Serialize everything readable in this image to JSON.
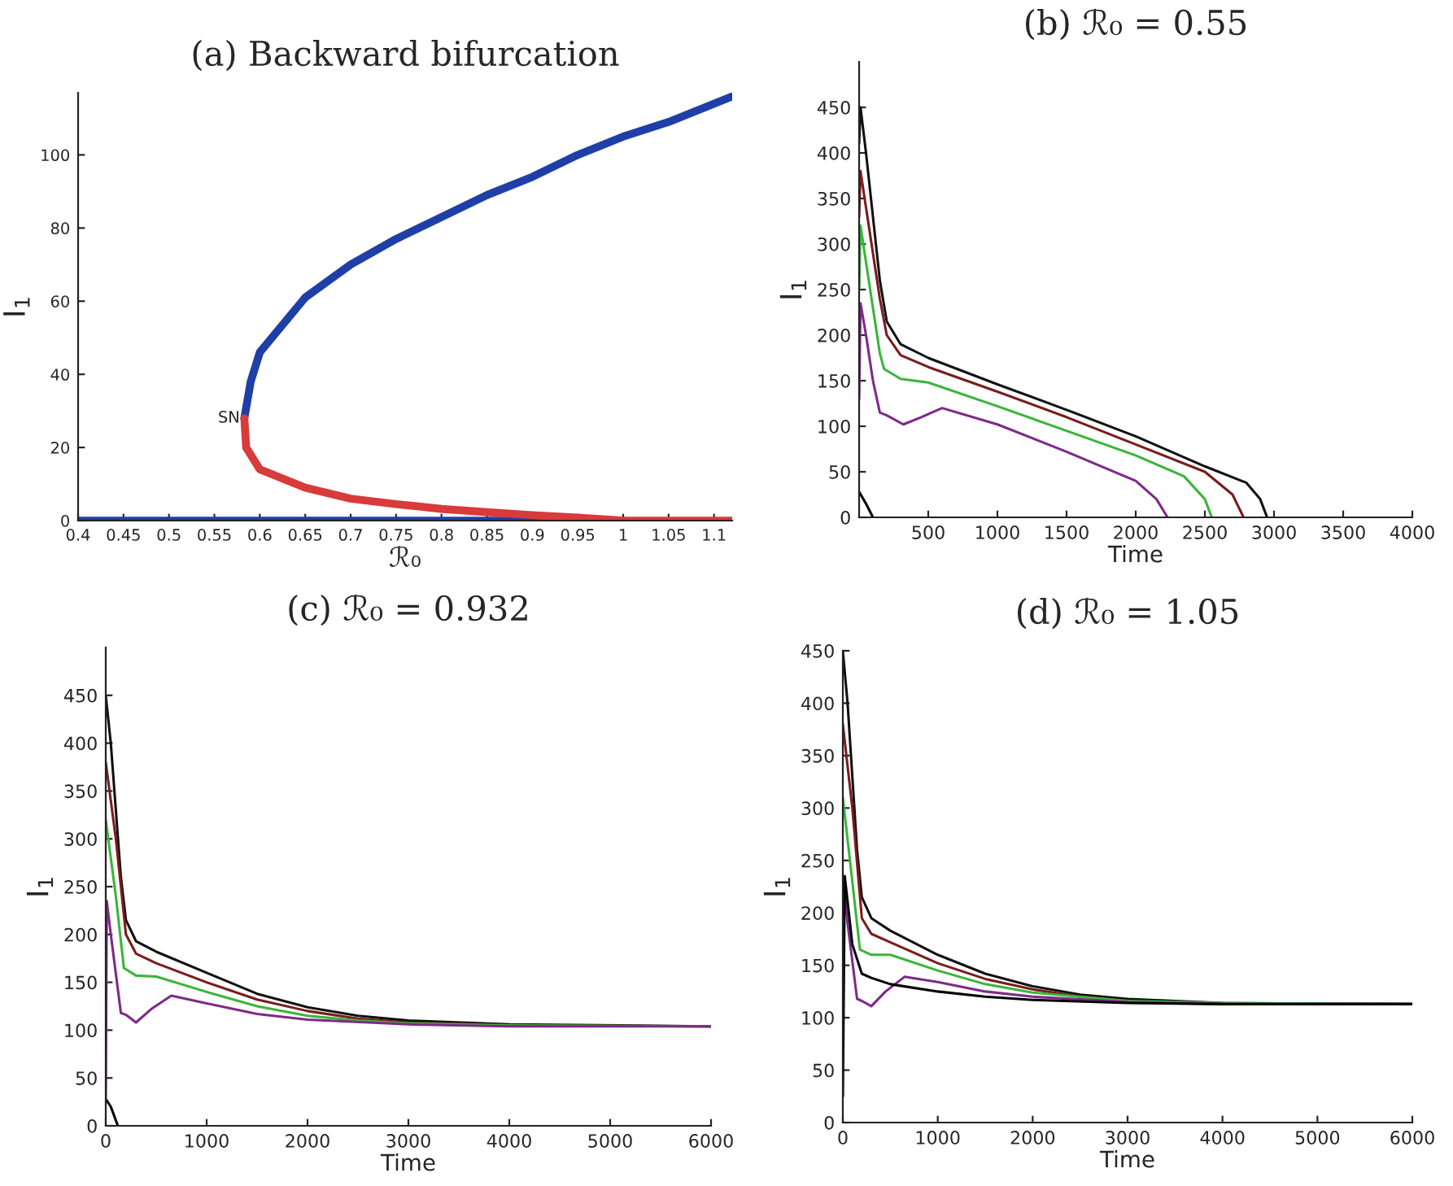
{
  "chart_data": [
    {
      "type": "line",
      "title": "(a) Backward bifurcation",
      "xlabel": "ℛ₀",
      "ylabel": "I$_{1}$",
      "xlim": [
        0.4,
        1.12
      ],
      "ylim": [
        0,
        117
      ],
      "xticks": [
        0.4,
        0.45,
        0.5,
        0.55,
        0.6,
        0.65,
        0.7,
        0.75,
        0.8,
        0.85,
        0.9,
        0.95,
        1,
        1.05,
        1.1
      ],
      "yticks": [
        0,
        20,
        40,
        60,
        80,
        100
      ],
      "annotations": [
        {
          "text": "SN",
          "x": 0.583,
          "y": 28
        }
      ],
      "series": [
        {
          "color": "#1f3fa8",
          "x": [
            0.4,
            1.0
          ],
          "values": [
            0,
            0
          ]
        },
        {
          "color": "#1f3fa8",
          "x": [
            0.583,
            0.59,
            0.6,
            0.65,
            0.7,
            0.75,
            0.8,
            0.85,
            0.9,
            0.95,
            1.0,
            1.05,
            1.1,
            1.12
          ],
          "values": [
            28,
            38,
            46,
            61,
            70,
            77,
            83,
            89,
            94,
            100,
            105,
            109,
            114,
            116
          ]
        },
        {
          "color": "#d93a3a",
          "x": [
            0.583,
            0.585,
            0.6,
            0.65,
            0.7,
            0.75,
            0.8,
            0.85,
            0.9,
            0.95,
            1.0,
            1.12
          ],
          "values": [
            28,
            20,
            14,
            9,
            6,
            4.5,
            3.2,
            2.3,
            1.5,
            0.8,
            0,
            0
          ]
        }
      ]
    },
    {
      "type": "line",
      "title": "(b) ℛ₀ = 0.55",
      "xlabel": "Time",
      "ylabel": "I$_{1}$",
      "xlim": [
        0,
        4000
      ],
      "ylim": [
        0,
        500
      ],
      "xticks": [
        500,
        1000,
        1500,
        2000,
        2500,
        3000,
        3500,
        4000
      ],
      "yticks": [
        0,
        50,
        100,
        150,
        200,
        250,
        300,
        350,
        400,
        450
      ],
      "series": [
        {
          "color": "#111111",
          "x": [
            0,
            10,
            50,
            100,
            150,
            200,
            300,
            500,
            1000,
            1500,
            2000,
            2500,
            2800,
            2900,
            2950
          ],
          "values": [
            410,
            450,
            400,
            330,
            260,
            215,
            190,
            175,
            146,
            118,
            89,
            56,
            38,
            20,
            0
          ]
        },
        {
          "color": "#7a1c1c",
          "x": [
            0,
            10,
            50,
            100,
            150,
            200,
            300,
            500,
            1000,
            1500,
            2000,
            2500,
            2700,
            2780
          ],
          "values": [
            330,
            380,
            340,
            290,
            240,
            200,
            178,
            165,
            138,
            110,
            80,
            50,
            25,
            0
          ]
        },
        {
          "color": "#3ab53a",
          "x": [
            0,
            10,
            50,
            100,
            150,
            180,
            300,
            500,
            1000,
            1500,
            2000,
            2350,
            2500,
            2550
          ],
          "values": [
            250,
            320,
            280,
            230,
            180,
            163,
            152,
            148,
            122,
            95,
            68,
            45,
            20,
            0
          ]
        },
        {
          "color": "#7d2a87",
          "x": [
            0,
            10,
            50,
            100,
            150,
            200,
            320,
            450,
            600,
            1000,
            1500,
            2000,
            2150,
            2230
          ],
          "values": [
            130,
            235,
            200,
            150,
            115,
            112,
            102,
            110,
            120,
            102,
            72,
            40,
            20,
            0
          ]
        },
        {
          "color": "#000000",
          "x": [
            0,
            50,
            100
          ],
          "values": [
            28,
            15,
            0
          ]
        }
      ]
    },
    {
      "type": "line",
      "title": "(c) ℛ₀ = 0.932",
      "xlabel": "Time",
      "ylabel": "I$_{1}$",
      "xlim": [
        0,
        6000
      ],
      "ylim": [
        0,
        500
      ],
      "xticks": [
        0,
        1000,
        2000,
        3000,
        4000,
        5000,
        6000
      ],
      "yticks": [
        0,
        50,
        100,
        150,
        200,
        250,
        300,
        350,
        400,
        450
      ],
      "series": [
        {
          "color": "#111111",
          "x": [
            0,
            50,
            100,
            150,
            200,
            300,
            500,
            1000,
            1500,
            2000,
            2500,
            3000,
            4000,
            6000
          ],
          "values": [
            450,
            400,
            330,
            260,
            215,
            193,
            182,
            160,
            138,
            124,
            115,
            110,
            106,
            104
          ]
        },
        {
          "color": "#7a1c1c",
          "x": [
            0,
            100,
            200,
            300,
            500,
            1000,
            1500,
            2000,
            2500,
            3000,
            4000,
            6000
          ],
          "values": [
            380,
            300,
            200,
            180,
            170,
            150,
            132,
            120,
            112,
            108,
            105,
            104
          ]
        },
        {
          "color": "#3ab53a",
          "x": [
            0,
            100,
            180,
            300,
            500,
            1000,
            1500,
            2000,
            2500,
            3000,
            4000,
            6000
          ],
          "values": [
            320,
            240,
            165,
            157,
            156,
            140,
            125,
            115,
            110,
            107,
            105,
            104
          ]
        },
        {
          "color": "#7d2a87",
          "x": [
            0,
            10,
            50,
            150,
            200,
            300,
            450,
            650,
            1000,
            1500,
            2000,
            3000,
            4000,
            6000
          ],
          "values": [
            30,
            235,
            200,
            118,
            116,
            108,
            122,
            136,
            128,
            117,
            111,
            106,
            104,
            104
          ]
        },
        {
          "color": "#000000",
          "x": [
            0,
            50,
            120
          ],
          "values": [
            28,
            20,
            0
          ]
        }
      ]
    },
    {
      "type": "line",
      "title": "(d) ℛ₀ = 1.05",
      "xlabel": "Time",
      "ylabel": "I$_{1}$",
      "xlim": [
        0,
        6000
      ],
      "ylim": [
        0,
        450
      ],
      "xticks": [
        0,
        1000,
        2000,
        3000,
        4000,
        5000,
        6000
      ],
      "yticks": [
        0,
        50,
        100,
        150,
        200,
        250,
        300,
        350,
        400,
        450
      ],
      "series": [
        {
          "color": "#111111",
          "x": [
            0,
            50,
            100,
            150,
            200,
            300,
            500,
            1000,
            1500,
            2000,
            2500,
            3000,
            4000,
            6000
          ],
          "values": [
            450,
            400,
            330,
            260,
            215,
            195,
            183,
            160,
            142,
            130,
            122,
            118,
            114,
            113
          ]
        },
        {
          "color": "#7a1c1c",
          "x": [
            0,
            100,
            200,
            300,
            500,
            1000,
            1500,
            2000,
            2500,
            3000
          ],
          "values": [
            380,
            300,
            195,
            180,
            172,
            152,
            137,
            127,
            120,
            116
          ]
        },
        {
          "color": "#3ab53a",
          "x": [
            0,
            100,
            180,
            300,
            500,
            1000,
            1500,
            2000,
            3000,
            4000,
            6000
          ],
          "values": [
            310,
            230,
            165,
            160,
            160,
            145,
            132,
            124,
            116,
            114,
            113
          ]
        },
        {
          "color": "#7d2a87",
          "x": [
            0,
            50,
            150,
            200,
            300,
            450,
            650,
            1000,
            1500,
            2000,
            3000,
            4000,
            6000
          ],
          "values": [
            235,
            190,
            118,
            116,
            111,
            125,
            139,
            134,
            125,
            120,
            115,
            113,
            113
          ]
        },
        {
          "color": "#000000",
          "x": [
            0,
            20,
            100,
            200,
            300,
            500,
            1000,
            1500,
            2000,
            3000,
            4000,
            6000
          ],
          "values": [
            25,
            235,
            170,
            142,
            138,
            132,
            125,
            120,
            117,
            114,
            113,
            113
          ]
        }
      ]
    }
  ]
}
